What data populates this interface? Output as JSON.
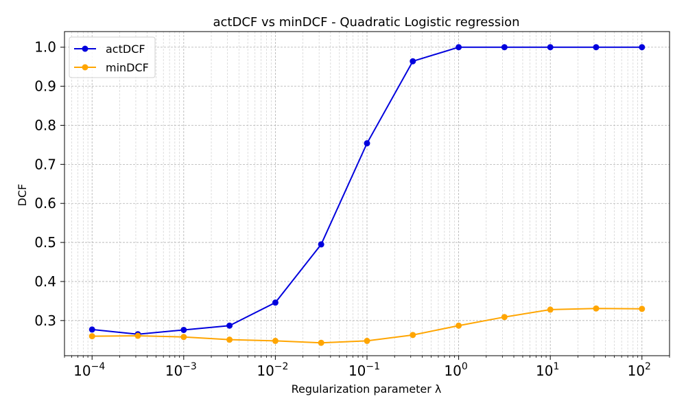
{
  "chart_data": {
    "type": "line",
    "title": "actDCF vs minDCF - Quadratic Logistic regression",
    "xlabel": "Regularization parameter λ",
    "ylabel": "DCF",
    "xscale": "log",
    "xlim": [
      5e-05,
      200
    ],
    "ylim": [
      0.21,
      1.04
    ],
    "grid": true,
    "legend_position": "top-left",
    "x": [
      0.0001,
      0.000316,
      0.001,
      0.00316,
      0.01,
      0.0316,
      0.1,
      0.316,
      1,
      3.16,
      10,
      31.6,
      100
    ],
    "x_ticks": [
      {
        "base": "10",
        "exp": "−4",
        "value": 0.0001
      },
      {
        "base": "10",
        "exp": "−3",
        "value": 0.001
      },
      {
        "base": "10",
        "exp": "−2",
        "value": 0.01
      },
      {
        "base": "10",
        "exp": "−1",
        "value": 0.1
      },
      {
        "base": "10",
        "exp": "0",
        "value": 1
      },
      {
        "base": "10",
        "exp": "1",
        "value": 10
      },
      {
        "base": "10",
        "exp": "2",
        "value": 100
      }
    ],
    "y_ticks": [
      "0.3",
      "0.4",
      "0.5",
      "0.6",
      "0.7",
      "0.8",
      "0.9",
      "1.0"
    ],
    "series": [
      {
        "name": "actDCF",
        "color": "#0000dd",
        "values": [
          0.277,
          0.265,
          0.276,
          0.287,
          0.346,
          0.495,
          0.754,
          0.964,
          1.0,
          1.0,
          1.0,
          1.0,
          1.0
        ]
      },
      {
        "name": "minDCF",
        "color": "#ffa500",
        "values": [
          0.26,
          0.261,
          0.258,
          0.251,
          0.248,
          0.243,
          0.248,
          0.263,
          0.287,
          0.309,
          0.328,
          0.331,
          0.33
        ]
      }
    ]
  }
}
